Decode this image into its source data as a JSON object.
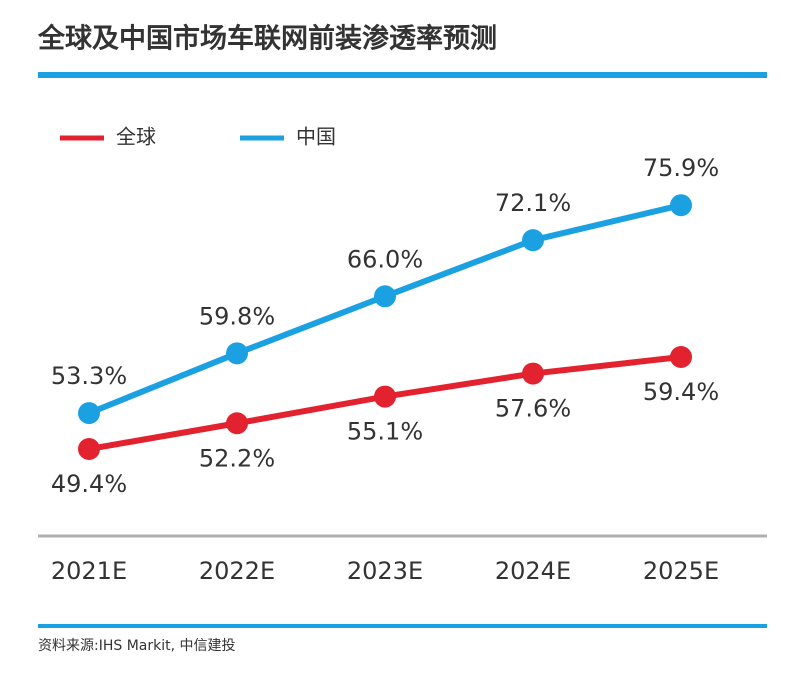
{
  "chart_data": {
    "type": "line",
    "title": "全球及中国市场车联网前装渗透率预测",
    "source": "资料来源:IHS Markit, 中信建投",
    "categories": [
      "2021E",
      "2022E",
      "2023E",
      "2024E",
      "2025E"
    ],
    "series": [
      {
        "name": "全球",
        "color": "#e3222f",
        "values": [
          49.4,
          52.2,
          55.1,
          57.6,
          59.4
        ],
        "value_labels": [
          "49.4%",
          "52.2%",
          "55.1%",
          "57.6%",
          "59.4%"
        ]
      },
      {
        "name": "中国",
        "color": "#1ba1e2",
        "values": [
          53.3,
          59.8,
          66.0,
          72.1,
          75.9
        ],
        "value_labels": [
          "53.3%",
          "59.8%",
          "66.0%",
          "72.1%",
          "75.9%"
        ]
      }
    ]
  }
}
